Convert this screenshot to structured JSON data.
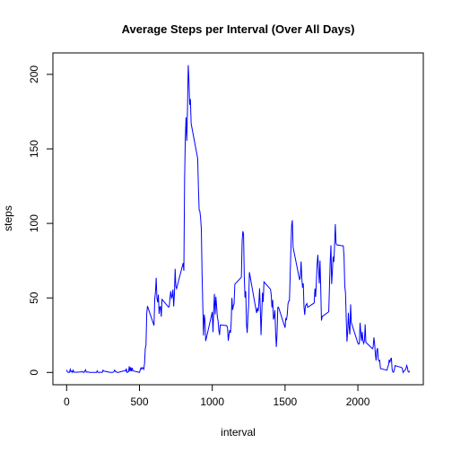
{
  "chart_data": {
    "type": "line",
    "title": "Average Steps per Interval (Over All Days)",
    "xlabel": "interval",
    "ylabel": "steps",
    "x": [
      0,
      5,
      10,
      15,
      20,
      25,
      30,
      35,
      40,
      45,
      50,
      55,
      100,
      105,
      110,
      115,
      120,
      125,
      130,
      135,
      140,
      145,
      150,
      155,
      200,
      205,
      210,
      215,
      220,
      225,
      230,
      235,
      240,
      245,
      250,
      255,
      300,
      305,
      310,
      315,
      320,
      325,
      330,
      335,
      340,
      345,
      350,
      355,
      400,
      405,
      410,
      415,
      420,
      425,
      430,
      435,
      440,
      445,
      450,
      455,
      500,
      505,
      510,
      515,
      520,
      525,
      530,
      535,
      540,
      545,
      550,
      555,
      600,
      605,
      610,
      615,
      620,
      625,
      630,
      635,
      640,
      645,
      650,
      655,
      700,
      705,
      710,
      715,
      720,
      725,
      730,
      735,
      740,
      745,
      750,
      755,
      800,
      805,
      810,
      815,
      820,
      825,
      830,
      835,
      840,
      845,
      850,
      855,
      900,
      905,
      910,
      915,
      920,
      925,
      930,
      935,
      940,
      945,
      950,
      955,
      1000,
      1005,
      1010,
      1015,
      1020,
      1025,
      1030,
      1035,
      1040,
      1045,
      1050,
      1055,
      1100,
      1105,
      1110,
      1115,
      1120,
      1125,
      1130,
      1135,
      1140,
      1145,
      1150,
      1155,
      1200,
      1205,
      1210,
      1215,
      1220,
      1225,
      1230,
      1235,
      1240,
      1245,
      1250,
      1255,
      1300,
      1305,
      1310,
      1315,
      1320,
      1325,
      1330,
      1335,
      1340,
      1345,
      1350,
      1355,
      1400,
      1405,
      1410,
      1415,
      1420,
      1425,
      1430,
      1435,
      1440,
      1445,
      1450,
      1455,
      1500,
      1505,
      1510,
      1515,
      1520,
      1525,
      1530,
      1535,
      1540,
      1545,
      1550,
      1555,
      1600,
      1605,
      1610,
      1615,
      1620,
      1625,
      1630,
      1635,
      1640,
      1645,
      1650,
      1655,
      1700,
      1705,
      1710,
      1715,
      1720,
      1725,
      1730,
      1735,
      1740,
      1745,
      1750,
      1755,
      1800,
      1805,
      1810,
      1815,
      1820,
      1825,
      1830,
      1835,
      1840,
      1845,
      1850,
      1855,
      1900,
      1905,
      1910,
      1915,
      1920,
      1925,
      1930,
      1935,
      1940,
      1945,
      1950,
      1955,
      2000,
      2005,
      2010,
      2015,
      2020,
      2025,
      2030,
      2035,
      2040,
      2045,
      2050,
      2055,
      2100,
      2105,
      2110,
      2115,
      2120,
      2125,
      2130,
      2135,
      2140,
      2145,
      2150,
      2155,
      2200,
      2205,
      2210,
      2215,
      2220,
      2225,
      2230,
      2235,
      2240,
      2245,
      2250,
      2255,
      2300,
      2305,
      2310,
      2315,
      2320,
      2325,
      2330,
      2335,
      2340,
      2345,
      2350,
      2355
    ],
    "series": [
      {
        "name": "steps",
        "color": "#0000ff",
        "values": [
          1.7,
          0.3,
          0.1,
          0.2,
          0.1,
          2.1,
          0.5,
          0.9,
          0,
          1.5,
          0.3,
          0.1,
          0.3,
          0.7,
          0.2,
          0.3,
          0,
          1.1,
          1.8,
          0.2,
          0.2,
          0.4,
          0.3,
          0,
          0,
          0,
          1.1,
          0,
          0,
          0.1,
          0,
          0.2,
          0,
          0,
          1.5,
          0.9,
          0,
          0,
          0,
          0,
          0.2,
          0.6,
          1.6,
          0.6,
          0.5,
          0.1,
          0,
          0,
          1.2,
          0.9,
          2.6,
          0,
          0.3,
          0.4,
          4.1,
          0.7,
          3.5,
          0.8,
          3.1,
          1.1,
          0,
          1.6,
          3,
          2.2,
          3.3,
          3,
          2.1,
          6.1,
          16,
          18.3,
          39.5,
          44.5,
          31.5,
          49.3,
          53.8,
          63.5,
          50,
          47.1,
          52.2,
          39.3,
          44,
          44.2,
          37.4,
          49,
          43.8,
          44.4,
          50.5,
          54.5,
          49.9,
          51,
          55.7,
          44.3,
          52.3,
          69.5,
          57.8,
          56.2,
          73.4,
          68.2,
          129.4,
          157.5,
          171.2,
          155.4,
          177.3,
          206.2,
          195.9,
          179.6,
          183.4,
          167,
          143.5,
          124,
          109.1,
          108.1,
          103.7,
          96,
          66.2,
          45.2,
          24.8,
          38.8,
          35,
          21.1,
          40.6,
          27,
          42.4,
          52.7,
          38.9,
          50.8,
          44.3,
          37.4,
          34.7,
          28.3,
          25.1,
          31.9,
          31.4,
          29.7,
          21.3,
          25.5,
          28.4,
          26.5,
          33.4,
          50,
          42,
          44.6,
          46,
          59.2,
          63.9,
          87.7,
          94.8,
          92.8,
          63.4,
          50.2,
          54.5,
          32.4,
          26.5,
          37.7,
          45.1,
          67.3,
          42.3,
          39.9,
          43.3,
          41,
          46.2,
          56.4,
          42.8,
          25.1,
          40,
          53.5,
          47.3,
          60.8,
          55.8,
          52,
          43.6,
          48.7,
          35.5,
          37.5,
          41.8,
          27.5,
          17.1,
          26.1,
          43.6,
          43.8,
          30,
          36.1,
          35.5,
          38.8,
          46,
          47.8,
          48.1,
          65.3,
          82.9,
          98.7,
          102.1,
          84,
          62.1,
          64.1,
          74.5,
          63.2,
          56.9,
          59.8,
          43.9,
          38.6,
          44.7,
          45.5,
          46.2,
          43.7,
          46.6,
          56.3,
          50.7,
          61.2,
          72.7,
          78.9,
          68.9,
          59.7,
          75.1,
          56.5,
          34.8,
          37.5,
          40.7,
          58,
          74.7,
          85.3,
          59.3,
          67.8,
          77.7,
          74.2,
          85.3,
          99.5,
          86.6,
          85.6,
          84.9,
          77.8,
          58,
          53.4,
          36.3,
          20.7,
          27.4,
          40,
          30.2,
          25.5,
          45.7,
          33.5,
          19.6,
          19,
          19.3,
          33.3,
          26.8,
          21.2,
          27.3,
          21.3,
          19.5,
          21.3,
          32.3,
          20.2,
          15.9,
          17.2,
          23.5,
          19.2,
          12.5,
          8,
          14.7,
          16.3,
          8.7,
          7.8,
          8.1,
          2.6,
          1.5,
          3.7,
          4.8,
          8.5,
          7.1,
          8.7,
          9.8,
          2.2,
          0.3,
          0.1,
          1.6,
          4.6,
          3.3,
          2.8,
          0,
          0.8,
          1,
          1.6,
          2.6,
          4.7,
          3.3,
          0.6,
          0.2,
          1.1
        ]
      }
    ],
    "xlim": [
      -94.2,
      2449.2
    ],
    "xticks": [
      0,
      500,
      1000,
      1500,
      2000
    ],
    "ylim": [
      -8.25,
      214.4
    ],
    "yticks": [
      0,
      50,
      100,
      150,
      200
    ]
  }
}
